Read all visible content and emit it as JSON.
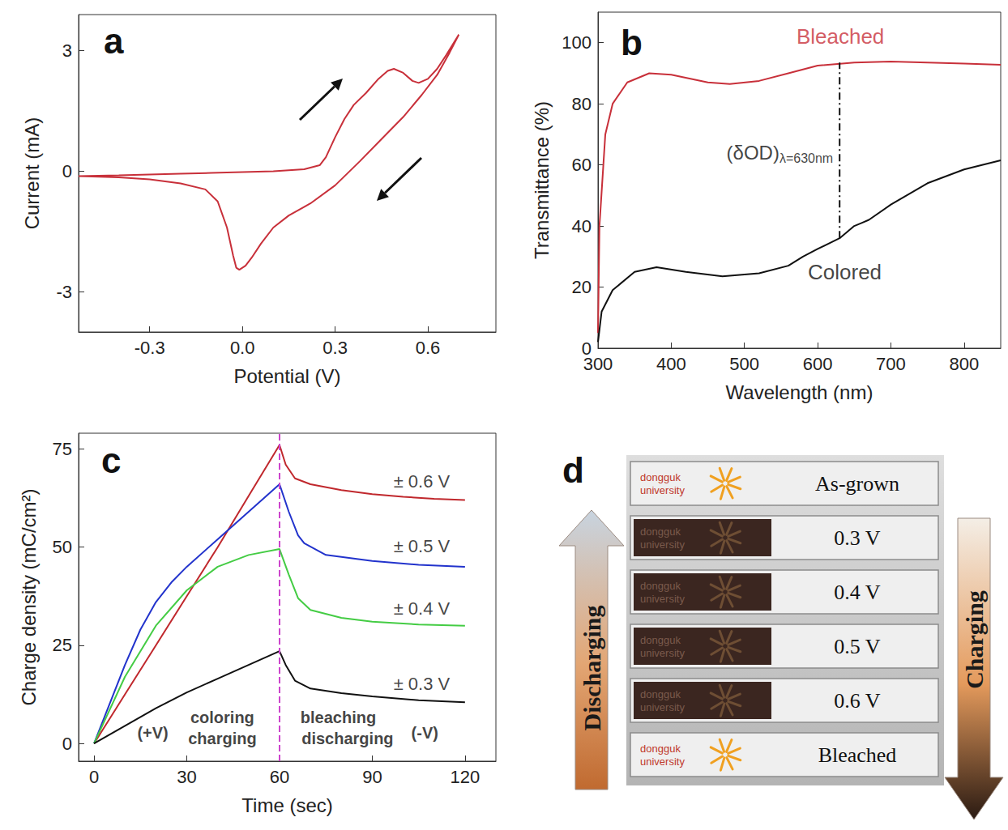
{
  "chart_data": [
    {
      "type": "line",
      "title": "a",
      "x_label": "Potential (V)",
      "y_label": "Current (mA)",
      "xlim": [
        -0.53,
        0.82
      ],
      "xticks": [
        -0.3,
        {
          "value": 0,
          "label": "0.0"
        },
        0.3,
        0.6
      ],
      "ylim": [
        -4,
        3.9
      ],
      "yticks": [
        -3,
        0,
        3
      ],
      "grid": false,
      "series": [
        {
          "color": "#c8303a",
          "x": [
            -0.53,
            -0.4,
            -0.3,
            -0.2,
            -0.1,
            0.0,
            0.1,
            0.2,
            0.25,
            0.27,
            0.3,
            0.33,
            0.36,
            0.4,
            0.44,
            0.47,
            0.49,
            0.52,
            0.55,
            0.57,
            0.6,
            0.63,
            0.66,
            0.7,
            0.67,
            0.63,
            0.58,
            0.52,
            0.45,
            0.38,
            0.3,
            0.22,
            0.15,
            0.1,
            0.06,
            0.03,
            0.01,
            -0.01,
            -0.02,
            -0.03,
            -0.05,
            -0.08,
            -0.12,
            -0.2,
            -0.3,
            -0.4,
            -0.53
          ],
          "values": [
            -0.12,
            -0.1,
            -0.08,
            -0.06,
            -0.04,
            -0.02,
            0.0,
            0.05,
            0.15,
            0.35,
            0.85,
            1.3,
            1.65,
            1.95,
            2.3,
            2.5,
            2.55,
            2.45,
            2.25,
            2.2,
            2.3,
            2.55,
            2.9,
            3.4,
            2.95,
            2.4,
            1.9,
            1.35,
            0.8,
            0.25,
            -0.35,
            -0.8,
            -1.1,
            -1.4,
            -1.8,
            -2.15,
            -2.35,
            -2.45,
            -2.4,
            -2.1,
            -1.4,
            -0.75,
            -0.45,
            -0.3,
            -0.2,
            -0.15,
            -0.12
          ]
        }
      ]
    },
    {
      "type": "line",
      "title": "b",
      "x_label": "Wavelength (nm)",
      "y_label": "Transmittance (%)",
      "xlim": [
        300,
        850
      ],
      "xticks": [
        300,
        400,
        500,
        600,
        700,
        800
      ],
      "ylim": [
        0,
        110
      ],
      "yticks": [
        0,
        20,
        40,
        60,
        80,
        100
      ],
      "grid": false,
      "series": [
        {
          "name": "Bleached",
          "color": "#c8303a",
          "label_at": [
            631,
            102
          ],
          "x": [
            300,
            302,
            310,
            320,
            340,
            370,
            400,
            450,
            480,
            520,
            560,
            600,
            650,
            700,
            750,
            800,
            850
          ],
          "values": [
            5,
            40,
            70,
            80,
            87,
            90,
            89.5,
            87,
            86.5,
            87.5,
            90,
            92.5,
            93.5,
            93.8,
            93.5,
            93.2,
            92.8
          ]
        },
        {
          "name": "Colored",
          "color": "#111111",
          "label_at": [
            637,
            25
          ],
          "x": [
            300,
            305,
            320,
            350,
            380,
            420,
            470,
            520,
            560,
            580,
            600,
            630,
            650,
            660,
            670,
            700,
            750,
            800,
            850
          ],
          "values": [
            2,
            12,
            19,
            25,
            26.5,
            25,
            23.5,
            24.5,
            27,
            30,
            32.5,
            36,
            40,
            41,
            42,
            47,
            54,
            58.5,
            61.5
          ]
        }
      ],
      "delta_od": {
        "text": "(δOD)",
        "subscript": "λ=630nm",
        "x": 630,
        "values": [
          36,
          93.5
        ],
        "label_y": 64
      }
    },
    {
      "type": "line",
      "title": "c",
      "x_label": "Time (sec)",
      "y_label": "Charge density (mC/cm²)",
      "xlim": [
        -5,
        130
      ],
      "xticks": [
        0,
        30,
        60,
        90,
        120
      ],
      "ylim": [
        -4.5,
        79
      ],
      "yticks": [
        0,
        25,
        50,
        75
      ],
      "grid": false,
      "series": [
        {
          "name": "± 0.6 V",
          "color": "#c0282d",
          "label_at": [
            106,
            66.8
          ],
          "x": [
            0,
            10,
            20,
            30,
            40,
            50,
            60,
            62,
            65,
            70,
            80,
            90,
            100,
            110,
            120
          ],
          "values": [
            0,
            12.5,
            25,
            37.5,
            50,
            63,
            76,
            71,
            67.5,
            66,
            64.5,
            63.5,
            62.8,
            62.3,
            62
          ]
        },
        {
          "name": "± 0.5 V",
          "color": "#2233cc",
          "label_at": [
            106,
            50.2
          ],
          "x": [
            0,
            5,
            10,
            15,
            20,
            25,
            30,
            40,
            50,
            60,
            63,
            66,
            68,
            75,
            90,
            105,
            120
          ],
          "values": [
            0,
            10,
            20,
            29,
            36,
            41,
            45,
            52,
            59,
            66,
            59,
            53,
            51,
            48,
            46.5,
            45.5,
            45
          ]
        },
        {
          "name": "± 0.4 V",
          "color": "#44cc44",
          "label_at": [
            106,
            34.3
          ],
          "x": [
            0,
            10,
            20,
            30,
            40,
            50,
            60,
            63,
            66,
            70,
            80,
            90,
            105,
            120
          ],
          "values": [
            0,
            17,
            30,
            39,
            45,
            48,
            49.5,
            43,
            37,
            34,
            32,
            31,
            30.3,
            30
          ]
        },
        {
          "name": "± 0.3 V",
          "color": "#111111",
          "label_at": [
            106,
            15.1
          ],
          "x": [
            0,
            10,
            20,
            30,
            40,
            50,
            60,
            62,
            65,
            70,
            80,
            90,
            105,
            120
          ],
          "values": [
            0,
            4.5,
            9,
            13,
            16.5,
            20,
            23.5,
            20,
            16,
            14,
            12.8,
            12,
            11,
            10.5
          ]
        }
      ],
      "vline": {
        "x": 60,
        "color": "#cc44cc"
      },
      "annotations": [
        {
          "text": "(+V)",
          "x": 19,
          "y": 2.7
        },
        {
          "text": "coloring",
          "x": 41.5,
          "y": 6.6
        },
        {
          "text": "charging",
          "x": 41.5,
          "y": 1.2
        },
        {
          "text": "bleaching",
          "x": 79,
          "y": 6.6
        },
        {
          "text": "discharging",
          "x": 82,
          "y": 1.2
        },
        {
          "text": "(-V)",
          "x": 107,
          "y": 2.7
        }
      ]
    }
  ],
  "panel_d": {
    "title": "d",
    "left_arrow": "Discharging",
    "right_arrow": "Charging",
    "logo": [
      "dongguk",
      "university"
    ],
    "slides": [
      {
        "label": "As-grown",
        "colored": false
      },
      {
        "label": "0.3 V",
        "colored": true
      },
      {
        "label": "0.4 V",
        "colored": true
      },
      {
        "label": "0.5 V",
        "colored": true
      },
      {
        "label": "0.6 V",
        "colored": true
      },
      {
        "label": "Bleached",
        "colored": false
      }
    ]
  }
}
